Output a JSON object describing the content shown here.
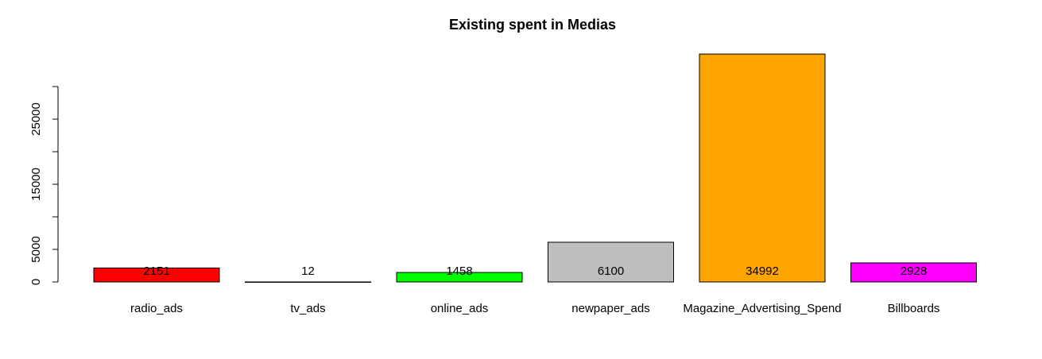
{
  "chart_data": {
    "type": "bar",
    "title": "Existing spent in Medias",
    "xlabel": "",
    "ylabel": "",
    "categories": [
      "radio_ads",
      "tv_ads",
      "online_ads",
      "newpaper_ads",
      "Magazine_Advertising_Spend",
      "Billboards"
    ],
    "values": [
      2151,
      12,
      1458,
      6100,
      34992,
      2928
    ],
    "data_labels": [
      "2151",
      "12",
      "1458",
      "6100",
      "34992",
      "2928"
    ],
    "colors": [
      "#ff0000",
      "#ffffff",
      "#00ff00",
      "#bebebe",
      "#ffa500",
      "#ff00ff"
    ],
    "ylim": [
      0,
      30000
    ],
    "y_major_ticks": [
      0,
      5000,
      15000,
      25000
    ],
    "y_minor_ticks": [
      10000,
      20000,
      30000
    ],
    "grid": false,
    "legend": "none"
  }
}
